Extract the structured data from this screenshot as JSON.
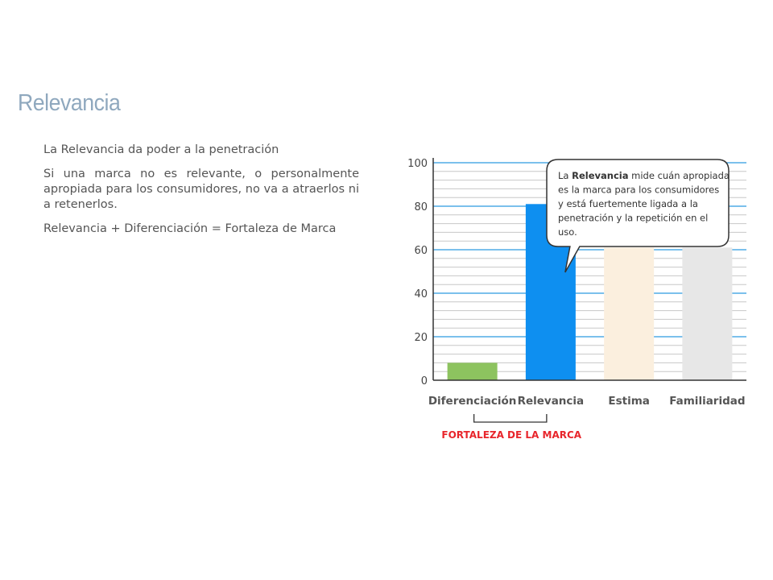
{
  "page": {
    "title": "Relevancia",
    "paragraphs": [
      "La Relevancia da poder a la penetración",
      "Si una marca no es relevante, o personalmente apropiada para los consumidores, no va a atraerlos ni a retenerlos.",
      "Relevancia + Diferenciación = Fortaleza de Marca"
    ]
  },
  "chart_data": {
    "type": "bar",
    "categories": [
      "Diferenciación",
      "Relevancia",
      "Estima",
      "Familiaridad"
    ],
    "values": [
      8,
      81,
      61,
      61
    ],
    "emphasis": [
      "solid",
      "solid",
      "faded",
      "faded"
    ],
    "colors": [
      "#8dc35f",
      "#0e8ff0",
      "#fbefde",
      "#e7e7e7"
    ],
    "ylim": [
      0,
      100
    ],
    "yticks": [
      0,
      20,
      40,
      60,
      80,
      100
    ],
    "major_grid_color": "#2c9be0",
    "minor_grid_color": "#c7c7c7",
    "bracket": {
      "spans": [
        "Diferenciación",
        "Relevancia"
      ],
      "label": "FORTALEZA DE LA MARCA",
      "color": "#e8252b"
    },
    "callout": {
      "points_to": "Relevancia",
      "prefix": "La ",
      "bold": "Relevancia",
      "lines": [
        " mide cuán apropiada",
        "es la marca para los consumidores",
        "y está fuertemente ligada a la",
        "penetración y la repetición en el",
        "uso."
      ]
    }
  }
}
